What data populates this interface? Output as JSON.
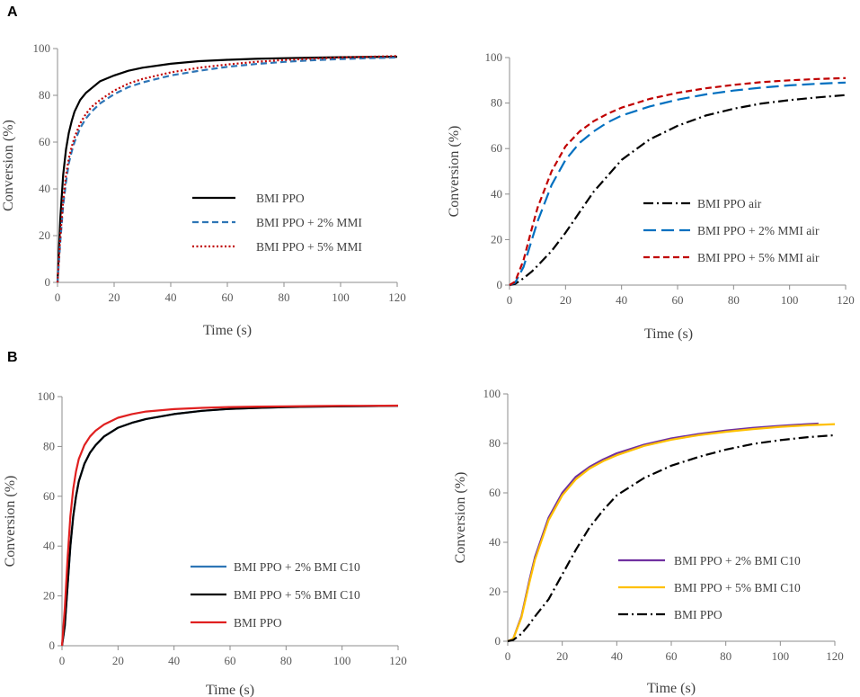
{
  "panel_labels": [
    "A",
    "B"
  ],
  "chart_data": [
    {
      "type": "line",
      "panel": "A",
      "xlabel": "Time (s)",
      "ylabel": "Conversion (%)",
      "xlim": [
        0,
        120
      ],
      "ylim": [
        0,
        100
      ],
      "xticks": [
        "0",
        "20",
        "40",
        "60",
        "80",
        "100",
        "120"
      ],
      "yticks": [
        "0",
        "20",
        "40",
        "60",
        "80",
        "100"
      ],
      "legend_position": "center-right",
      "series": [
        {
          "name": "BMI PPO",
          "color": "#000000",
          "style": "solid",
          "x": [
            0,
            1,
            2,
            3,
            4,
            5,
            6,
            8,
            10,
            12,
            15,
            20,
            25,
            30,
            40,
            50,
            60,
            70,
            80,
            90,
            100,
            110,
            120
          ],
          "y": [
            0,
            28,
            46,
            57,
            64,
            69,
            73,
            78,
            81,
            83,
            86,
            88.5,
            90.5,
            91.8,
            93.5,
            94.6,
            95.2,
            95.6,
            95.9,
            96.1,
            96.3,
            96.4,
            96.5
          ]
        },
        {
          "name": "BMI PPO + 2% MMI",
          "color": "#2e75b6",
          "style": "dashed",
          "x": [
            0,
            1,
            2,
            3,
            4,
            5,
            6,
            8,
            10,
            12,
            15,
            20,
            25,
            30,
            40,
            50,
            60,
            70,
            80,
            90,
            100,
            110,
            120
          ],
          "y": [
            0,
            18,
            33,
            43,
            51,
            56,
            60,
            66,
            70,
            73,
            76.5,
            80.5,
            83.5,
            85.5,
            88.5,
            90.5,
            92.2,
            93.4,
            94.3,
            95,
            95.5,
            95.9,
            96.2
          ]
        },
        {
          "name": "BMI PPO + 5% MMI",
          "color": "#c00000",
          "style": "dotted",
          "x": [
            0,
            1,
            2,
            3,
            4,
            5,
            6,
            8,
            10,
            12,
            15,
            20,
            25,
            30,
            40,
            50,
            60,
            70,
            80,
            90,
            100,
            110,
            120
          ],
          "y": [
            0,
            20,
            35,
            46,
            53,
            58,
            62,
            68,
            72,
            75,
            78,
            82,
            85,
            87,
            89.8,
            91.8,
            93.2,
            94.3,
            95.1,
            95.7,
            96.2,
            96.5,
            96.8
          ]
        }
      ]
    },
    {
      "type": "line",
      "panel": "A",
      "xlabel": "Time (s)",
      "ylabel": "Conversion (%)",
      "xlim": [
        0,
        120
      ],
      "ylim": [
        0,
        100
      ],
      "xticks": [
        "0",
        "20",
        "40",
        "60",
        "80",
        "100",
        "120"
      ],
      "yticks": [
        "0",
        "20",
        "40",
        "60",
        "80",
        "100"
      ],
      "legend_position": "center-right",
      "series": [
        {
          "name": "BMI PPO air",
          "color": "#000000",
          "style": "dashdot",
          "x": [
            0,
            2,
            5,
            8,
            10,
            15,
            20,
            25,
            30,
            35,
            40,
            50,
            60,
            70,
            80,
            90,
            100,
            110,
            120
          ],
          "y": [
            0,
            0.5,
            3,
            6,
            8.5,
            15,
            23,
            32,
            41,
            48,
            55,
            64,
            70,
            74.5,
            77.5,
            79.8,
            81.3,
            82.5,
            83.5
          ]
        },
        {
          "name": "BMI PPO + 2% MMI air",
          "color": "#0070c0",
          "style": "longdash",
          "x": [
            0,
            2,
            5,
            8,
            10,
            15,
            20,
            25,
            30,
            35,
            40,
            50,
            60,
            70,
            80,
            90,
            100,
            110,
            120
          ],
          "y": [
            0,
            1,
            8,
            20,
            28,
            44,
            55,
            62.5,
            67.5,
            71.5,
            74.5,
            78.5,
            81.5,
            83.8,
            85.5,
            86.8,
            87.8,
            88.5,
            89
          ]
        },
        {
          "name": "BMI PPO + 5% MMI air",
          "color": "#c00000",
          "style": "dashed",
          "x": [
            0,
            2,
            5,
            8,
            10,
            15,
            20,
            25,
            30,
            35,
            40,
            50,
            60,
            70,
            80,
            90,
            100,
            110,
            120
          ],
          "y": [
            0,
            1.5,
            11,
            25,
            34,
            50,
            61,
            67.5,
            72,
            75.3,
            78,
            81.8,
            84.5,
            86.5,
            88,
            89.2,
            90,
            90.6,
            91
          ]
        }
      ]
    },
    {
      "type": "line",
      "panel": "B",
      "xlabel": "Time (s)",
      "ylabel": "Conversion (%)",
      "xlim": [
        0,
        120
      ],
      "ylim": [
        0,
        100
      ],
      "xticks": [
        "0",
        "20",
        "40",
        "60",
        "80",
        "100",
        "120"
      ],
      "yticks": [
        "0",
        "20",
        "40",
        "60",
        "80",
        "100"
      ],
      "legend_position": "bottom-left",
      "series": [
        {
          "name": "BMI PPO + 2%  BMI C10",
          "color": "#2e75b6",
          "style": "solid",
          "x": [
            0,
            1,
            2,
            3,
            4,
            5,
            6,
            8,
            10,
            12,
            15,
            20,
            25,
            30,
            40,
            50,
            60,
            70,
            80,
            90,
            100,
            110,
            120
          ],
          "y": [
            0,
            8,
            24,
            40,
            52,
            60,
            66,
            73,
            77.5,
            80.5,
            84,
            87.5,
            89.5,
            91,
            93,
            94.3,
            95.1,
            95.5,
            95.8,
            96,
            96.1,
            96.2,
            96.3
          ]
        },
        {
          "name": "BMI PPO + 5%  BMI C10",
          "color": "#000000",
          "style": "solid",
          "x": [
            0,
            1,
            2,
            3,
            4,
            5,
            6,
            8,
            10,
            12,
            15,
            20,
            25,
            30,
            40,
            50,
            60,
            70,
            80,
            90,
            100,
            110,
            120
          ],
          "y": [
            0,
            8,
            24,
            40,
            52,
            60,
            66,
            73,
            77.5,
            80.5,
            84,
            87.5,
            89.5,
            91,
            93,
            94.3,
            95.1,
            95.5,
            95.8,
            96,
            96.1,
            96.2,
            96.3
          ]
        },
        {
          "name": "BMI PPO",
          "color": "#e02020",
          "style": "solid",
          "x": [
            0,
            1,
            2,
            3,
            4,
            5,
            6,
            8,
            10,
            12,
            15,
            20,
            25,
            30,
            40,
            50,
            60,
            70,
            80,
            90,
            100,
            110,
            120
          ],
          "y": [
            0,
            15,
            35,
            52,
            63,
            70,
            75,
            80.5,
            84,
            86.3,
            88.8,
            91.5,
            93,
            94,
            95,
            95.5,
            95.8,
            96,
            96.1,
            96.2,
            96.3,
            96.3,
            96.4
          ]
        }
      ]
    },
    {
      "type": "line",
      "panel": "B",
      "xlabel": "Time (s)",
      "ylabel": "Conversion (%)",
      "xlim": [
        0,
        120
      ],
      "ylim": [
        0,
        100
      ],
      "xticks": [
        "0",
        "20",
        "40",
        "60",
        "80",
        "100",
        "120"
      ],
      "yticks": [
        "0",
        "20",
        "40",
        "60",
        "80",
        "100"
      ],
      "legend_position": "center-right",
      "series": [
        {
          "name": "BMI PPO + 2% BMI C10",
          "color": "#7030a0",
          "style": "solid",
          "x": [
            0,
            2,
            5,
            8,
            10,
            15,
            20,
            25,
            30,
            35,
            40,
            50,
            60,
            70,
            80,
            90,
            100,
            110,
            114
          ],
          "y": [
            0,
            1,
            10,
            25,
            34,
            50,
            60,
            66.5,
            70.5,
            73.5,
            76,
            79.5,
            82,
            83.8,
            85.2,
            86.3,
            87.1,
            87.8,
            88
          ]
        },
        {
          "name": "BMI PPO + 5% BMI C10",
          "color": "#ffc000",
          "style": "solid",
          "x": [
            0,
            2,
            5,
            8,
            10,
            15,
            20,
            25,
            30,
            35,
            40,
            50,
            60,
            70,
            80,
            90,
            100,
            110,
            120
          ],
          "y": [
            0,
            1,
            9.5,
            24,
            33,
            49,
            59,
            65.5,
            69.8,
            72.8,
            75.2,
            79,
            81.5,
            83.3,
            84.7,
            85.8,
            86.7,
            87.3,
            87.8
          ]
        },
        {
          "name": "BMI PPO",
          "color": "#000000",
          "style": "dashdot",
          "x": [
            0,
            2,
            5,
            8,
            10,
            15,
            20,
            25,
            30,
            35,
            40,
            50,
            60,
            70,
            80,
            90,
            100,
            110,
            120
          ],
          "y": [
            0,
            0.5,
            3,
            7,
            10,
            17,
            27,
            37,
            46,
            53,
            59,
            66,
            71,
            74.5,
            77.5,
            79.8,
            81.3,
            82.5,
            83.3
          ]
        }
      ]
    }
  ]
}
